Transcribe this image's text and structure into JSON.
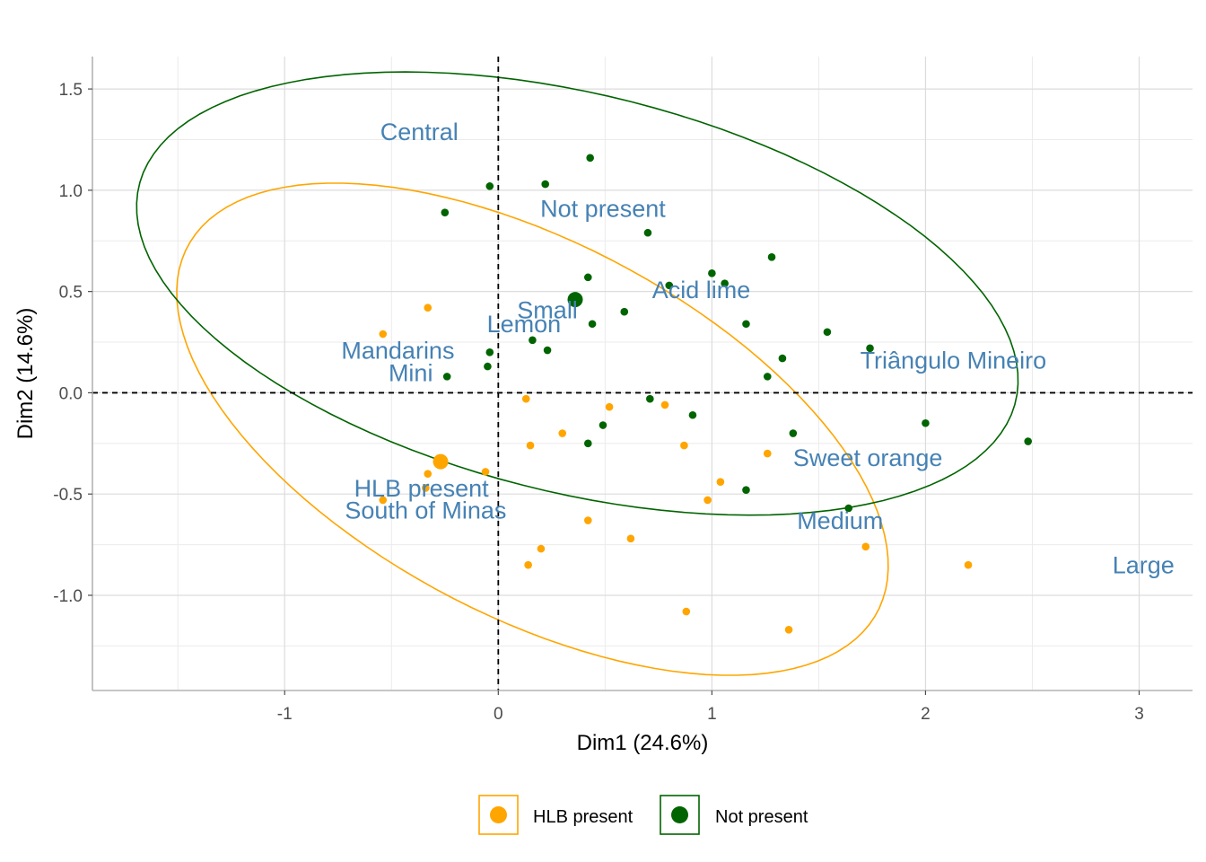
{
  "chart_data": {
    "type": "scatter",
    "xlabel": "Dim1 (24.6%)",
    "ylabel": "Dim2 (14.6%)",
    "xlim": [
      -1.9,
      3.25
    ],
    "ylim": [
      -1.47,
      1.66
    ],
    "x_ticks": [
      -1,
      0,
      1,
      2,
      3
    ],
    "y_ticks": [
      -1.0,
      -0.5,
      0.0,
      0.5,
      1.0,
      1.5
    ],
    "x_tick_labels": [
      "-1",
      "0",
      "1",
      "2",
      "3"
    ],
    "y_tick_labels": [
      "-1.0",
      "-0.5",
      "0.0",
      "0.5",
      "1.0",
      "1.5"
    ],
    "grid": true,
    "reference_lines": {
      "x": 0,
      "y": 0
    },
    "legend": {
      "position": "bottom",
      "entries": [
        {
          "label": "HLB present",
          "color": "#FFA500"
        },
        {
          "label": "Not present",
          "color": "#006400"
        }
      ]
    },
    "series": [
      {
        "name": "HLB present",
        "color": "#FFA500",
        "centroid": [
          -0.27,
          -0.34
        ],
        "ellipse": {
          "cx": 0.16,
          "cy": -0.18,
          "rx": 1.85,
          "ry": 0.91,
          "angle_deg": -30
        },
        "points": [
          [
            -0.33,
            0.42
          ],
          [
            -0.54,
            0.29
          ],
          [
            -0.33,
            -0.4
          ],
          [
            -0.34,
            -0.47
          ],
          [
            -0.54,
            -0.53
          ],
          [
            -0.06,
            -0.39
          ],
          [
            0.13,
            -0.03
          ],
          [
            0.15,
            -0.26
          ],
          [
            0.3,
            -0.2
          ],
          [
            0.52,
            -0.07
          ],
          [
            0.78,
            -0.06
          ],
          [
            0.87,
            -0.26
          ],
          [
            1.04,
            -0.44
          ],
          [
            0.98,
            -0.53
          ],
          [
            1.26,
            -0.3
          ],
          [
            0.42,
            -0.63
          ],
          [
            0.62,
            -0.72
          ],
          [
            0.2,
            -0.77
          ],
          [
            0.14,
            -0.85
          ],
          [
            0.88,
            -1.08
          ],
          [
            1.36,
            -1.17
          ],
          [
            1.72,
            -0.76
          ],
          [
            2.2,
            -0.85
          ]
        ]
      },
      {
        "name": "Not present",
        "color": "#006400",
        "centroid": [
          0.36,
          0.46
        ],
        "ellipse": {
          "cx": 0.37,
          "cy": 0.49,
          "rx": 2.12,
          "ry": 0.98,
          "angle_deg": -15
        },
        "points": [
          [
            -0.04,
            1.02
          ],
          [
            0.22,
            1.03
          ],
          [
            0.43,
            1.16
          ],
          [
            -0.25,
            0.89
          ],
          [
            0.7,
            0.79
          ],
          [
            0.42,
            0.57
          ],
          [
            1.0,
            0.59
          ],
          [
            1.06,
            0.54
          ],
          [
            1.28,
            0.67
          ],
          [
            0.8,
            0.53
          ],
          [
            0.59,
            0.4
          ],
          [
            0.44,
            0.34
          ],
          [
            1.16,
            0.34
          ],
          [
            1.54,
            0.3
          ],
          [
            1.74,
            0.22
          ],
          [
            0.16,
            0.26
          ],
          [
            0.23,
            0.21
          ],
          [
            -0.04,
            0.2
          ],
          [
            -0.05,
            0.13
          ],
          [
            -0.24,
            0.08
          ],
          [
            1.33,
            0.17
          ],
          [
            1.26,
            0.08
          ],
          [
            0.71,
            -0.03
          ],
          [
            0.91,
            -0.11
          ],
          [
            0.49,
            -0.16
          ],
          [
            0.42,
            -0.25
          ],
          [
            1.38,
            -0.2
          ],
          [
            2.0,
            -0.15
          ],
          [
            2.48,
            -0.24
          ],
          [
            1.16,
            -0.48
          ],
          [
            1.64,
            -0.57
          ]
        ]
      }
    ],
    "category_labels": [
      {
        "text": "Central",
        "x": -0.37,
        "y": 1.28
      },
      {
        "text": "Not present",
        "x": 0.49,
        "y": 0.9
      },
      {
        "text": "Acid lime",
        "x": 0.95,
        "y": 0.5
      },
      {
        "text": "Small",
        "x": 0.23,
        "y": 0.4
      },
      {
        "text": "Lemon",
        "x": 0.12,
        "y": 0.33
      },
      {
        "text": "Mandarins",
        "x": -0.47,
        "y": 0.2
      },
      {
        "text": "Mini",
        "x": -0.41,
        "y": 0.09
      },
      {
        "text": "Triângulo Mineiro",
        "x": 2.13,
        "y": 0.15
      },
      {
        "text": "Sweet orange",
        "x": 1.73,
        "y": -0.33
      },
      {
        "text": "HLB present",
        "x": -0.36,
        "y": -0.48
      },
      {
        "text": "South of Minas",
        "x": -0.34,
        "y": -0.59
      },
      {
        "text": "Medium",
        "x": 1.6,
        "y": -0.64
      },
      {
        "text": "Large",
        "x": 3.02,
        "y": -0.86
      }
    ],
    "category_label_color": "#4682B4"
  }
}
